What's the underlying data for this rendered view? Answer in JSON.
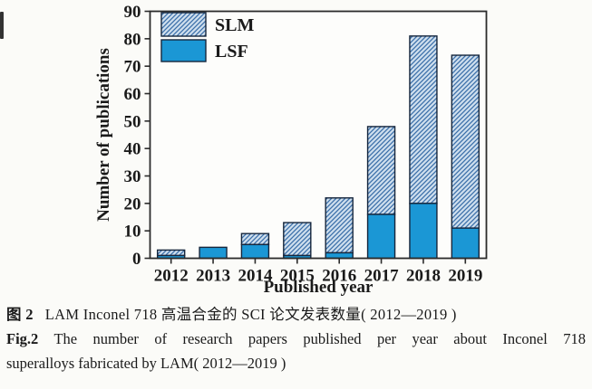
{
  "figure": {
    "caption_zh_label": "图 2",
    "caption_zh_text": "LAM Inconel 718 高温合金的 SCI 论文发表数量( 2012—2019 )",
    "caption_en_label": "Fig.2",
    "caption_en_line1": "The number of research papers published per year about Inconel 718",
    "caption_en_line2": "superalloys fabricated by LAM( 2012—2019 )"
  },
  "chart_data": {
    "type": "bar",
    "stacked": true,
    "title": "",
    "xlabel": "Published year",
    "ylabel": "Number of publications",
    "categories": [
      "2012",
      "2013",
      "2014",
      "2015",
      "2016",
      "2017",
      "2018",
      "2019"
    ],
    "series": [
      {
        "name": "SLM",
        "style": "hatched",
        "values": [
          2,
          0,
          4,
          12,
          20,
          32,
          61,
          63
        ]
      },
      {
        "name": "LSF",
        "style": "solid",
        "values": [
          1,
          4,
          5,
          1,
          2,
          16,
          20,
          11
        ]
      }
    ],
    "totals": [
      3,
      4,
      9,
      13,
      22,
      48,
      81,
      74
    ],
    "ylim": [
      0,
      90
    ],
    "ytick_step": 10,
    "grid": false,
    "legend_position": "top-left",
    "colors": {
      "lsf_fill": "#1b97d5",
      "hatch_bg": "#cfdfee",
      "hatch_line": "#3b6fa9",
      "bar_border": "#16263c",
      "axis": "#2b2b2b",
      "tick_text": "#1a1a1a"
    }
  }
}
